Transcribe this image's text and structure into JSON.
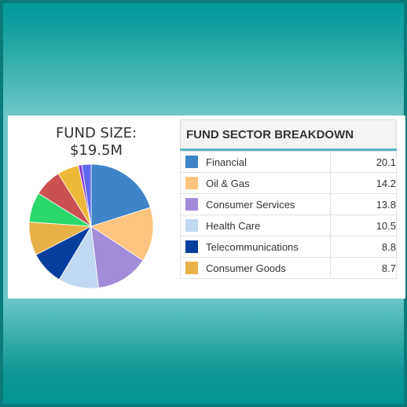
{
  "fund_size": {
    "label": "FUND SIZE:",
    "value": "$19.5M"
  },
  "sector_breakdown": {
    "title": "FUND SECTOR BREAKDOWN",
    "rows": [
      {
        "name": "Financial",
        "value": "20.1",
        "color": "#3e84c6"
      },
      {
        "name": "Oil & Gas",
        "value": "14.2",
        "color": "#fcc47e"
      },
      {
        "name": "Consumer Services",
        "value": "13.8",
        "color": "#a28bd9"
      },
      {
        "name": "Health Care",
        "value": "10.5",
        "color": "#c0d8f1"
      },
      {
        "name": "Telecommunications",
        "value": "8.8",
        "color": "#063e9e"
      },
      {
        "name": "Consumer Goods",
        "value": "8.7",
        "color": "#e8b248"
      }
    ]
  },
  "chart_data": {
    "type": "pie",
    "categories": [
      "Financial",
      "Oil & Gas",
      "Consumer Services",
      "Health Care",
      "Telecommunications",
      "Consumer Goods",
      "",
      "",
      "",
      "",
      ""
    ],
    "values": [
      20.1,
      14.2,
      13.8,
      10.5,
      8.8,
      8.7,
      7.8,
      7.2,
      5.6,
      0.9,
      2.4
    ],
    "colors": [
      "#3e84c6",
      "#fcc47e",
      "#a28bd9",
      "#c0d8f1",
      "#063e9e",
      "#e8b248",
      "#2bd86a",
      "#c95150",
      "#eeb938",
      "#8a3bd4",
      "#5f69ee"
    ],
    "start_angle_deg": 0,
    "direction": "clockwise"
  }
}
